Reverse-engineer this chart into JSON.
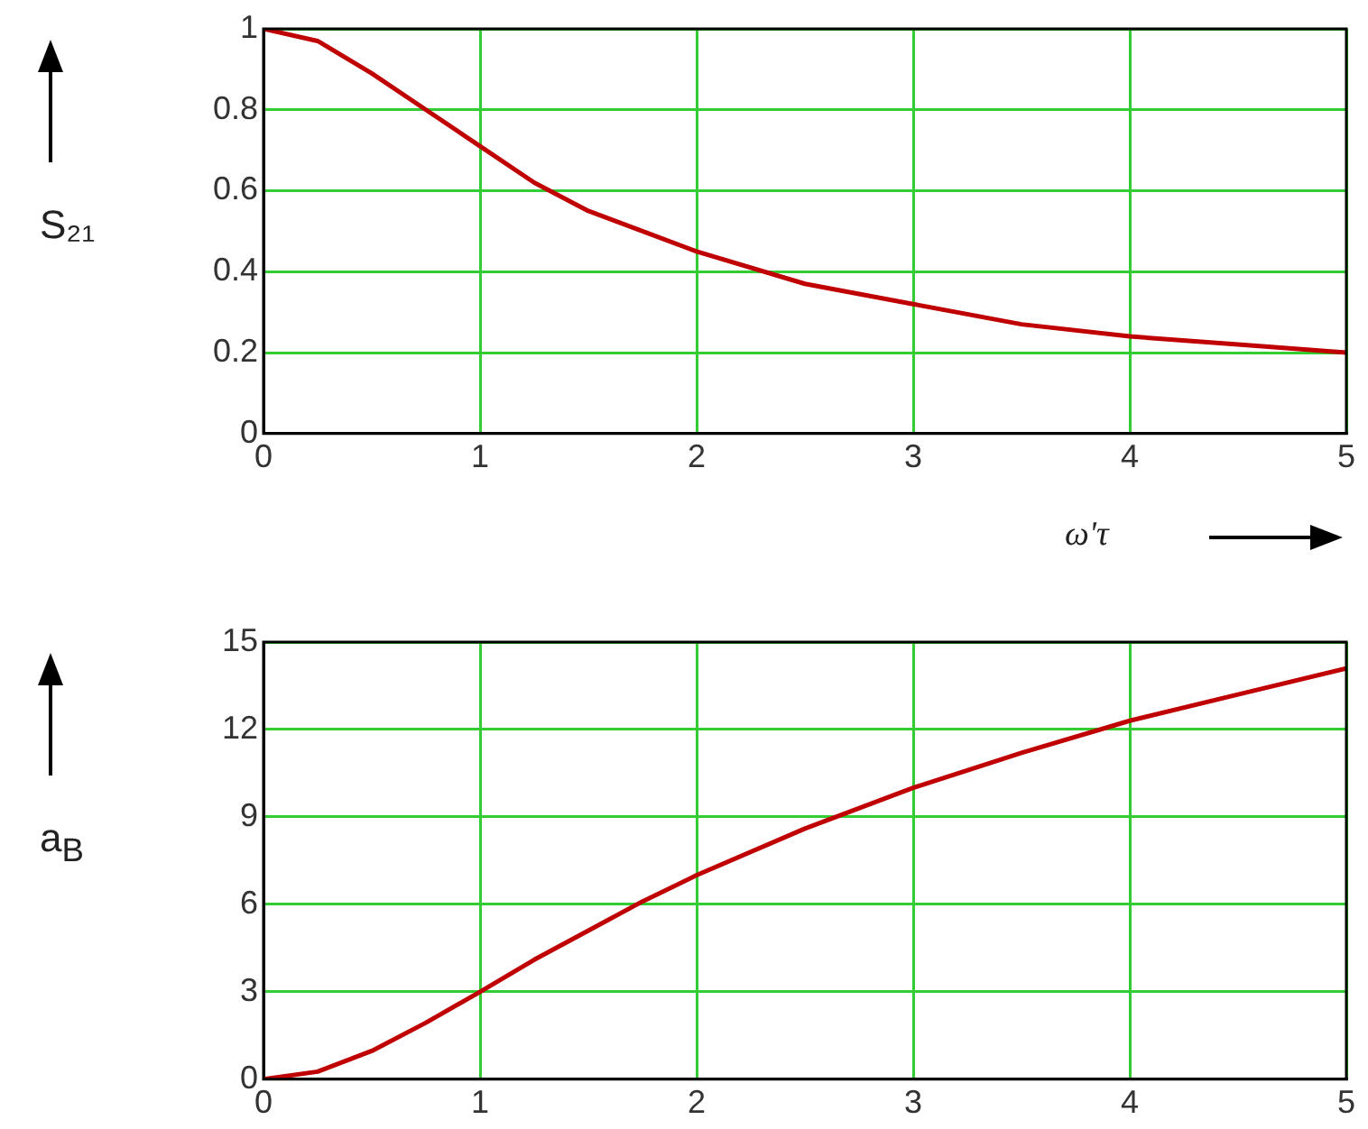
{
  "chart_data": [
    {
      "type": "line",
      "ylabel": "S₂₁",
      "xlabel": "ω'τ",
      "x": [
        0,
        0.25,
        0.5,
        0.75,
        1,
        1.25,
        1.5,
        1.75,
        2,
        2.5,
        3,
        3.5,
        4,
        4.5,
        5
      ],
      "values": [
        1,
        0.97,
        0.89,
        0.8,
        0.71,
        0.62,
        0.55,
        0.5,
        0.45,
        0.37,
        0.32,
        0.27,
        0.24,
        0.22,
        0.2
      ],
      "color": "#c00000",
      "xlim": [
        0,
        5
      ],
      "xticks": [
        0,
        1,
        2,
        3,
        4,
        5
      ],
      "ylim": [
        0,
        1
      ],
      "yticks": [
        0,
        0.2,
        0.4,
        0.6,
        0.8,
        1
      ],
      "grid": true
    },
    {
      "type": "line",
      "ylabel": "a$_{B}$",
      "x": [
        0,
        0.25,
        0.5,
        0.75,
        1,
        1.25,
        1.5,
        1.75,
        2,
        2.5,
        3,
        3.5,
        4,
        4.5,
        5
      ],
      "values": [
        0,
        0.26,
        0.97,
        1.94,
        3,
        4.1,
        5.1,
        6.1,
        7,
        8.6,
        10,
        11.2,
        12.3,
        13.2,
        14.1
      ],
      "color": "#c00000",
      "xlim": [
        0,
        5
      ],
      "xticks": [
        0,
        1,
        2,
        3,
        4,
        5
      ],
      "ylim": [
        0,
        15
      ],
      "yticks": [
        0,
        3,
        6,
        9,
        12,
        15
      ],
      "grid": true
    }
  ]
}
